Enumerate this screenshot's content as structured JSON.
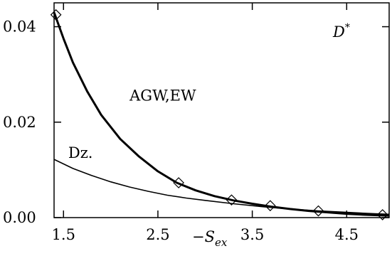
{
  "chart_data": {
    "type": "line",
    "xlabel": {
      "sign": "−",
      "symbol": "S",
      "subscript": "ex"
    },
    "panel_label": {
      "symbol": "D",
      "superscript": "*"
    },
    "xlim": [
      1.4,
      4.95
    ],
    "ylim": [
      0.0,
      0.045
    ],
    "x_ticks": [
      {
        "value": 1.5,
        "label": "1.5"
      },
      {
        "value": 2.5,
        "label": "2.5"
      },
      {
        "value": 3.5,
        "label": "3.5"
      },
      {
        "value": 4.5,
        "label": "4.5"
      }
    ],
    "y_ticks": [
      {
        "value": 0.0,
        "label": "0.00"
      },
      {
        "value": 0.02,
        "label": "0.02"
      },
      {
        "value": 0.04,
        "label": "0.04"
      }
    ],
    "series": [
      {
        "name": "AGW,EW",
        "label_position": {
          "x": 2.2,
          "y": 0.0245
        },
        "stroke_width": 3,
        "x": [
          1.4,
          1.5,
          1.6,
          1.75,
          1.9,
          2.1,
          2.3,
          2.5,
          2.7,
          2.9,
          3.1,
          3.3,
          3.5,
          3.7,
          3.9,
          4.1,
          4.3,
          4.5,
          4.7,
          4.95
        ],
        "y": [
          0.043,
          0.0375,
          0.0325,
          0.0265,
          0.0215,
          0.0165,
          0.0128,
          0.0097,
          0.0073,
          0.0057,
          0.0045,
          0.0036,
          0.0029,
          0.0023,
          0.0018,
          0.0014,
          0.0011,
          0.0008,
          0.0006,
          0.0004
        ]
      },
      {
        "name": "Dz.",
        "label_position": {
          "x": 1.55,
          "y": 0.0125
        },
        "stroke_width": 1.6,
        "x": [
          1.4,
          1.6,
          1.8,
          2.0,
          2.2,
          2.4,
          2.6,
          2.8,
          3.0,
          3.3,
          3.6,
          3.9,
          4.2,
          4.5,
          4.8,
          4.95
        ],
        "y": [
          0.0122,
          0.0103,
          0.0088,
          0.0075,
          0.0064,
          0.0055,
          0.0047,
          0.0041,
          0.0036,
          0.0029,
          0.0023,
          0.0018,
          0.0014,
          0.0011,
          0.0008,
          0.0007
        ]
      }
    ],
    "markers": {
      "shape": "diamond",
      "points": [
        {
          "x": 1.42,
          "y": 0.0425
        },
        {
          "x": 2.72,
          "y": 0.0073
        },
        {
          "x": 3.28,
          "y": 0.0037
        },
        {
          "x": 3.69,
          "y": 0.0025
        },
        {
          "x": 4.2,
          "y": 0.0014
        },
        {
          "x": 4.88,
          "y": 0.0006
        }
      ]
    },
    "grid": false,
    "legend": "none"
  }
}
